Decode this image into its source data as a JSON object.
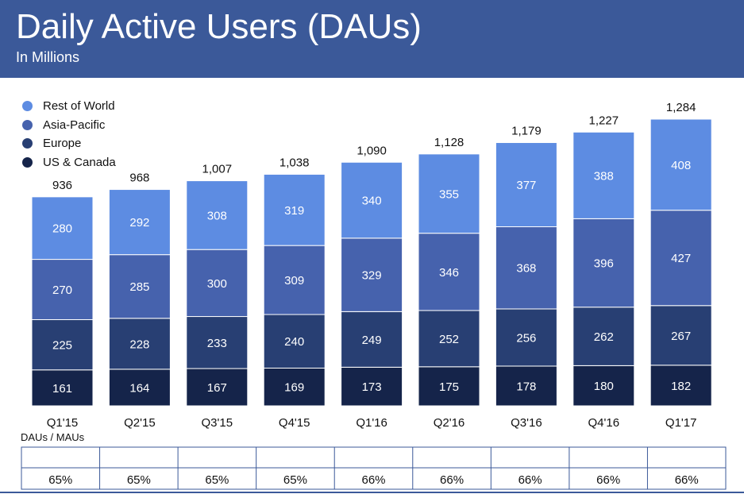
{
  "header": {
    "title": "Daily Active Users (DAUs)",
    "subtitle": "In Millions",
    "background": "#3b5999"
  },
  "chart_data": {
    "type": "bar",
    "stacked": true,
    "title": "Daily Active Users (DAUs)",
    "subtitle": "In Millions",
    "categories": [
      "Q1'15",
      "Q2'15",
      "Q3'15",
      "Q4'15",
      "Q1'16",
      "Q2'16",
      "Q3'16",
      "Q4'16",
      "Q1'17"
    ],
    "series": [
      {
        "name": "US & Canada",
        "color": "#15244a",
        "values": [
          161,
          164,
          167,
          169,
          173,
          175,
          178,
          180,
          182
        ]
      },
      {
        "name": "Europe",
        "color": "#283f73",
        "values": [
          225,
          228,
          233,
          240,
          249,
          252,
          256,
          262,
          267
        ]
      },
      {
        "name": "Asia-Pacific",
        "color": "#4662ad",
        "values": [
          270,
          285,
          300,
          309,
          329,
          346,
          368,
          396,
          427
        ]
      },
      {
        "name": "Rest of World",
        "color": "#5d8ce2",
        "values": [
          280,
          292,
          308,
          319,
          340,
          355,
          377,
          388,
          408
        ]
      }
    ],
    "totals": [
      "936",
      "968",
      "1,007",
      "1,038",
      "1,090",
      "1,128",
      "1,179",
      "1,227",
      "1,284"
    ],
    "legend_order": [
      "Rest of World",
      "Asia-Pacific",
      "Europe",
      "US & Canada"
    ],
    "legend_position": "top-left",
    "xlabel": "",
    "ylabel": "",
    "grid": false,
    "ratio_table": {
      "caption": "DAUs / MAUs",
      "values": [
        "65%",
        "65%",
        "65%",
        "65%",
        "66%",
        "66%",
        "66%",
        "66%",
        "66%"
      ]
    }
  }
}
